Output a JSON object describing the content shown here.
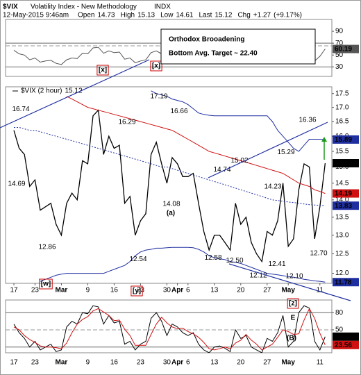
{
  "header": {
    "symbol": "$VIX",
    "title": "Volatility Index - New Methodology",
    "exchange": "INDX",
    "date": "12-May-2015 9:46am",
    "quote": [
      {
        "name": "Open",
        "value": 14.73
      },
      {
        "name": "High",
        "value": 15.13
      },
      {
        "name": "Low",
        "value": 14.61
      },
      {
        "name": "Last",
        "value": 15.12
      },
      {
        "name": "Chg",
        "value": {
          "value": 1.27,
          "label": "+1.27"
        }
      }
    ],
    "change_pct": {
      "value": 9.17,
      "label": "(+9.17%)"
    }
  },
  "box": [
    "Orthodox Brooadening",
    "Bottom Avg. Target ~ 22.40"
  ],
  "annotations": [
    "[x]",
    "[x]",
    "[w]",
    "[y]",
    "(a)",
    "[z]",
    "E",
    "(B)"
  ],
  "chart_data": [
    {
      "type": "line",
      "ylim": [
        14,
        110
      ],
      "yticks": [
        90,
        70,
        50,
        30
      ],
      "lines": [
        70,
        30
      ],
      "series": [
        {
          "name": null,
          "color": "#555555",
          "values": [
            58,
            52,
            50,
            42,
            45,
            38,
            40,
            41,
            36,
            34,
            42,
            45,
            44,
            53,
            52,
            62,
            63,
            53,
            57,
            54,
            55,
            43,
            45,
            37,
            40,
            42,
            54,
            57,
            52,
            48,
            53,
            51,
            49,
            49,
            50,
            44,
            39,
            36,
            39,
            39,
            37,
            36,
            46,
            42,
            44,
            39,
            37,
            35,
            42,
            41,
            44,
            52,
            38,
            40,
            50,
            56,
            55,
            40,
            48,
            60.19
          ]
        }
      ]
    },
    {
      "type": "line",
      "log_scale": true,
      "grid": false,
      "ylim": [
        11.75,
        17.75
      ],
      "yticks": [
        17.5,
        {
          "value": 17,
          "label": "17.0"
        },
        16.5,
        {
          "value": 16,
          "label": "16.0"
        },
        15.5,
        {
          "value": 15,
          "label": "15.0"
        },
        14.5,
        {
          "value": 14,
          "label": "14.0"
        },
        13.5,
        {
          "value": 13,
          "label": "13.0"
        },
        12.5,
        {
          "value": 12,
          "label": "12.0"
        }
      ],
      "categories": [
        "17",
        null,
        null,
        null,
        "23",
        null,
        null,
        null,
        null,
        "Mar",
        null,
        null,
        null,
        null,
        "9",
        null,
        null,
        null,
        null,
        "16",
        null,
        null,
        null,
        null,
        "23",
        null,
        null,
        null,
        null,
        "30",
        null,
        "Apr",
        null,
        "6",
        null,
        null,
        null,
        null,
        "13",
        null,
        null,
        null,
        null,
        "20",
        null,
        null,
        null,
        null,
        "27",
        null,
        null,
        null,
        "May",
        null,
        null,
        null,
        null,
        null,
        "11",
        null
      ],
      "series": [
        {
          "name": "$VIX (2 hour)",
          "color": "#000000",
          "values": [
            16.2,
            15.6,
            15.4,
            14.4,
            14.6,
            13.7,
            13.8,
            13.9,
            13.3,
            13.0,
            13.9,
            14.2,
            14.0,
            15.2,
            15.1,
            16.7,
            16.9,
            15.4,
            16.0,
            15.6,
            15.7,
            13.9,
            14.1,
            13.0,
            13.4,
            13.6,
            15.4,
            15.8,
            15.1,
            14.5,
            15.3,
            15.1,
            14.7,
            14.7,
            14.8,
            13.9,
            13.1,
            12.6,
            13.0,
            13.0,
            12.8,
            12.6,
            13.9,
            13.3,
            13.5,
            12.8,
            12.5,
            12.3,
            13.1,
            13.0,
            13.4,
            14.5,
            12.7,
            12.9,
            14.3,
            15.1,
            15.0,
            12.9,
            13.8,
            15.12
          ]
        },
        {
          "name": null,
          "color": "#1f2fa0",
          "values": [
            null,
            null,
            null,
            null,
            null,
            null,
            null,
            null,
            null,
            null,
            null,
            null,
            null,
            null,
            null,
            null,
            null,
            null,
            null,
            null,
            null,
            null,
            null,
            null,
            null,
            null,
            17.6,
            17.5,
            17.45,
            17.4,
            17.3,
            17.25,
            17.2,
            17.1,
            16.95,
            16.8,
            16.75,
            16.72,
            16.7,
            16.7,
            16.7,
            16.7,
            16.7,
            16.7,
            16.7,
            16.7,
            16.7,
            16.7,
            16.7,
            16.5,
            16.2,
            16.0,
            15.8,
            15.6,
            15.5,
            15.7,
            15.9,
            15.9,
            15.9,
            15.89
          ]
        },
        {
          "name": null,
          "color": "#1f2fa0",
          "dashed": true,
          "values": [
            16.3,
            16.3,
            16.25,
            16.2,
            16.2,
            16.15,
            16.1,
            16.05,
            16.0,
            15.95,
            15.9,
            15.85,
            15.8,
            15.75,
            15.7,
            15.65,
            15.6,
            15.55,
            15.5,
            15.45,
            15.4,
            15.35,
            15.3,
            15.25,
            15.2,
            15.15,
            15.1,
            15.05,
            15.0,
            15.0,
            14.95,
            14.9,
            14.85,
            14.8,
            14.75,
            14.7,
            14.65,
            14.6,
            14.55,
            14.5,
            14.45,
            14.4,
            14.35,
            14.3,
            14.25,
            14.2,
            14.15,
            14.1,
            14.05,
            14.0,
            13.98,
            13.96,
            13.94,
            13.92,
            13.9,
            13.88,
            13.86,
            13.85,
            13.84,
            13.83
          ]
        },
        {
          "name": null,
          "color": "#1f2fa0",
          "values": [
            null,
            null,
            null,
            null,
            null,
            11.8,
            11.85,
            11.9,
            11.95,
            11.98,
            12.0,
            12.0,
            12.0,
            12.0,
            12.0,
            12.0,
            12.0,
            12.0,
            12.05,
            12.1,
            12.15,
            12.2,
            12.3,
            12.45,
            12.55,
            12.6,
            12.62,
            12.65,
            12.65,
            12.66,
            12.67,
            12.67,
            12.67,
            12.67,
            12.66,
            12.62,
            12.55,
            12.45,
            12.4,
            12.37,
            12.35,
            12.3,
            12.28,
            12.25,
            12.2,
            12.15,
            12.1,
            12.05,
            12.0,
            11.98,
            11.96,
            11.94,
            11.92,
            11.9,
            11.88,
            11.85,
            11.83,
            11.81,
            11.8,
            11.78
          ]
        },
        {
          "name": null,
          "color": "#d01010",
          "values": [
            null,
            null,
            null,
            null,
            null,
            null,
            null,
            null,
            null,
            null,
            17.4,
            17.3,
            17.2,
            17.1,
            17.0,
            16.95,
            16.9,
            16.85,
            16.8,
            16.75,
            16.7,
            16.65,
            16.6,
            16.55,
            16.5,
            16.45,
            16.4,
            16.35,
            16.3,
            16.25,
            16.2,
            16.1,
            16.0,
            15.9,
            15.8,
            15.7,
            15.6,
            15.5,
            15.45,
            15.4,
            15.35,
            15.3,
            15.25,
            15.2,
            15.15,
            15.1,
            15.05,
            15.0,
            14.95,
            14.9,
            14.85,
            14.8,
            14.7,
            14.6,
            14.5,
            14.45,
            14.4,
            14.3,
            14.25,
            14.19
          ]
        }
      ],
      "extremes": [
        16.74,
        14.69,
        12.86,
        16.29,
        17.19,
        16.66,
        14.08,
        12.54,
        14.74,
        15.02,
        12.58,
        {
          "value": 12.5,
          "label": "12.50"
        },
        14.23,
        15.29,
        12.12,
        12.41,
        {
          "value": 12.1,
          "label": "12.10"
        },
        16.36,
        {
          "value": 12.7,
          "label": "12.70"
        }
      ]
    },
    {
      "type": "line",
      "ylim": [
        10,
        102
      ],
      "yticks": [
        80,
        50
      ],
      "lines": [
        80,
        20
      ],
      "series": [
        {
          "name": null,
          "color": "#000000",
          "values": [
            60,
            45,
            35,
            20,
            30,
            15,
            20,
            25,
            12,
            15,
            55,
            65,
            60,
            80,
            78,
            92,
            90,
            60,
            75,
            62,
            65,
            25,
            30,
            15,
            25,
            30,
            70,
            80,
            65,
            40,
            60,
            55,
            45,
            40,
            45,
            25,
            15,
            10,
            20,
            22,
            18,
            12,
            50,
            35,
            40,
            20,
            15,
            10,
            35,
            30,
            45,
            75,
            20,
            30,
            80,
            92,
            88,
            30,
            15,
            38.07
          ]
        },
        {
          "name": null,
          "color": "#d01010",
          "values": [
            55,
            50,
            40,
            33,
            28,
            22,
            20,
            20,
            19,
            17,
            27,
            45,
            60,
            68,
            73,
            83,
            87,
            81,
            75,
            66,
            67,
            51,
            40,
            23,
            23,
            23,
            42,
            60,
            72,
            62,
            55,
            52,
            53,
            47,
            43,
            37,
            28,
            17,
            15,
            17,
            20,
            17,
            27,
            32,
            42,
            32,
            25,
            15,
            20,
            25,
            37,
            50,
            47,
            42,
            43,
            67,
            87,
            70,
            44,
            23.56
          ]
        }
      ]
    }
  ]
}
